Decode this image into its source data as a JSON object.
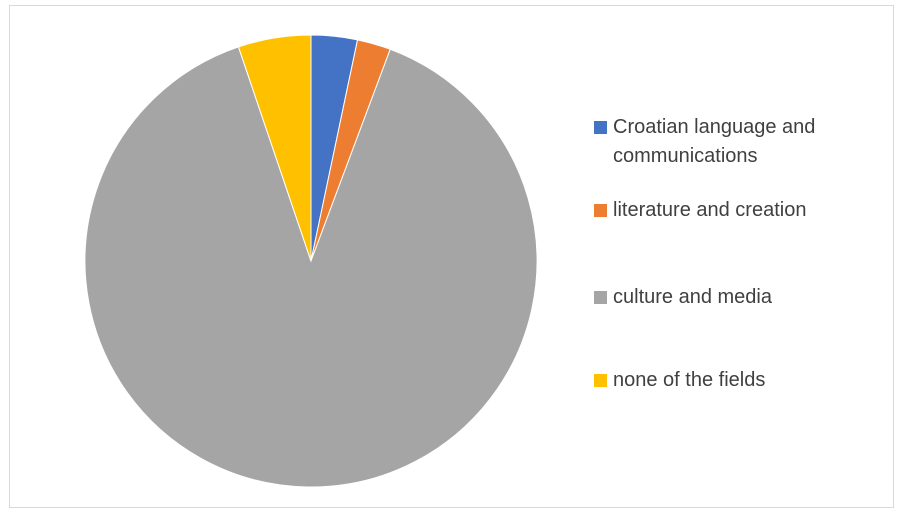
{
  "chart_data": {
    "type": "pie",
    "title": "",
    "categories": [
      "Croatian language and communications",
      "literature and creation",
      "culture and media",
      "none of the fields"
    ],
    "values": [
      3.3,
      2.4,
      89.1,
      5.2
    ],
    "colors": [
      "#4472c4",
      "#ed7d31",
      "#a5a5a5",
      "#ffc000"
    ],
    "start_angle_deg": 0,
    "direction": "clockwise",
    "legend_position": "right"
  }
}
